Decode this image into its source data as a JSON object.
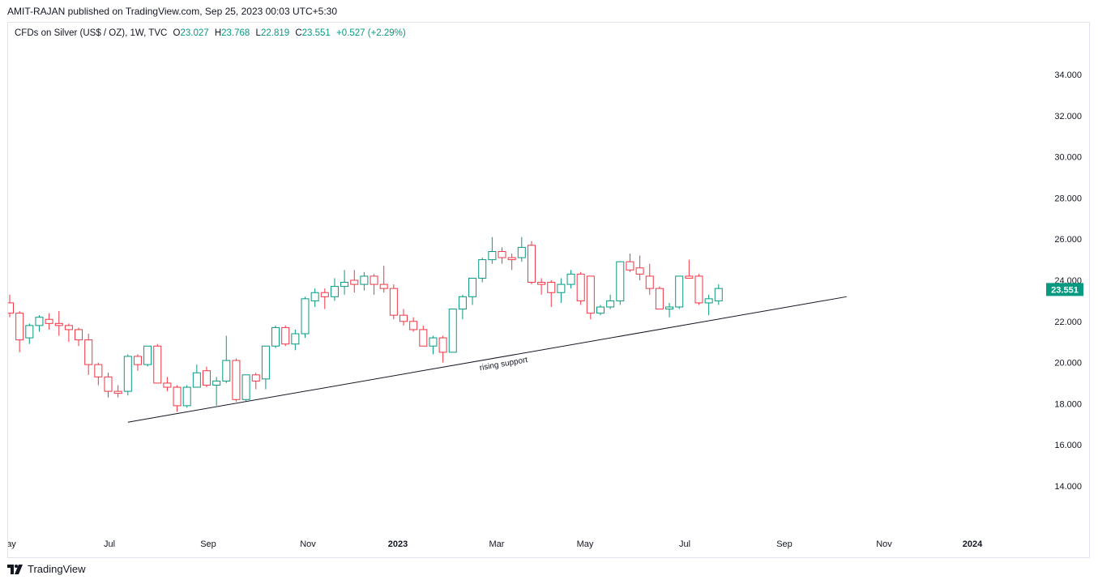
{
  "publisher_line": "AMIT-RAJAN published on TradingView.com, Sep 25, 2023 00:03 UTC+5:30",
  "legend": {
    "symbol": "CFDs on Silver (US$ / OZ), 1W, TVC",
    "open_label": "O",
    "open": "23.027",
    "high_label": "H",
    "high": "23.768",
    "low_label": "L",
    "low": "22.819",
    "close_label": "C",
    "close": "23.551",
    "change": "+0.527 (+2.29%)"
  },
  "footer": {
    "brand": "TradingView",
    "logo_icon": "tradingview-logo-icon"
  },
  "colors": {
    "up": "#089981",
    "down": "#f23645",
    "line": "#131722",
    "price_tag": "#089981"
  },
  "chart_data": {
    "type": "candlestick",
    "y_range": [
      12.5,
      35.5
    ],
    "y_ticks": [
      "34.000",
      "32.000",
      "30.000",
      "28.000",
      "26.000",
      "24.000",
      "22.000",
      "20.000",
      "18.000",
      "16.000",
      "14.000"
    ],
    "x_ticks": [
      {
        "label": "ay",
        "bold": false
      },
      {
        "label": "Jul",
        "bold": false
      },
      {
        "label": "Sep",
        "bold": false
      },
      {
        "label": "Nov",
        "bold": false
      },
      {
        "label": "2023",
        "bold": true
      },
      {
        "label": "Mar",
        "bold": false
      },
      {
        "label": "May",
        "bold": false
      },
      {
        "label": "Jul",
        "bold": false
      },
      {
        "label": "Sep",
        "bold": false
      },
      {
        "label": "Nov",
        "bold": false
      },
      {
        "label": "2024",
        "bold": true
      }
    ],
    "last_price": "23.551",
    "candles": [
      {
        "o": 22.9,
        "h": 23.3,
        "l": 22.2,
        "c": 22.4
      },
      {
        "o": 22.4,
        "h": 22.5,
        "l": 20.5,
        "c": 21.1
      },
      {
        "o": 21.2,
        "h": 21.9,
        "l": 20.9,
        "c": 21.8
      },
      {
        "o": 21.8,
        "h": 22.3,
        "l": 21.5,
        "c": 22.2
      },
      {
        "o": 22.1,
        "h": 22.4,
        "l": 21.6,
        "c": 21.9
      },
      {
        "o": 21.9,
        "h": 22.5,
        "l": 21.3,
        "c": 21.8
      },
      {
        "o": 21.8,
        "h": 21.9,
        "l": 21.0,
        "c": 21.6
      },
      {
        "o": 21.6,
        "h": 21.7,
        "l": 20.8,
        "c": 21.1
      },
      {
        "o": 21.1,
        "h": 21.4,
        "l": 19.4,
        "c": 19.9
      },
      {
        "o": 19.9,
        "h": 20.0,
        "l": 18.9,
        "c": 19.3
      },
      {
        "o": 19.3,
        "h": 19.5,
        "l": 18.3,
        "c": 18.6
      },
      {
        "o": 18.6,
        "h": 18.9,
        "l": 18.3,
        "c": 18.5
      },
      {
        "o": 18.6,
        "h": 20.4,
        "l": 18.4,
        "c": 20.3
      },
      {
        "o": 20.3,
        "h": 20.4,
        "l": 19.6,
        "c": 19.9
      },
      {
        "o": 19.9,
        "h": 20.8,
        "l": 19.8,
        "c": 20.8
      },
      {
        "o": 20.8,
        "h": 20.9,
        "l": 19.0,
        "c": 19.0
      },
      {
        "o": 19.0,
        "h": 19.3,
        "l": 18.6,
        "c": 18.8
      },
      {
        "o": 18.8,
        "h": 18.9,
        "l": 17.6,
        "c": 17.9
      },
      {
        "o": 17.9,
        "h": 18.9,
        "l": 17.8,
        "c": 18.8
      },
      {
        "o": 18.8,
        "h": 19.9,
        "l": 18.8,
        "c": 19.5
      },
      {
        "o": 19.6,
        "h": 19.8,
        "l": 18.8,
        "c": 18.9
      },
      {
        "o": 18.9,
        "h": 19.3,
        "l": 17.9,
        "c": 19.1
      },
      {
        "o": 19.1,
        "h": 21.3,
        "l": 19.0,
        "c": 20.1
      },
      {
        "o": 20.1,
        "h": 20.2,
        "l": 18.1,
        "c": 18.2
      },
      {
        "o": 18.2,
        "h": 19.4,
        "l": 18.1,
        "c": 19.4
      },
      {
        "o": 19.4,
        "h": 19.5,
        "l": 18.7,
        "c": 19.1
      },
      {
        "o": 19.2,
        "h": 20.8,
        "l": 18.7,
        "c": 20.8
      },
      {
        "o": 20.8,
        "h": 21.8,
        "l": 20.7,
        "c": 21.7
      },
      {
        "o": 21.7,
        "h": 21.8,
        "l": 20.8,
        "c": 20.9
      },
      {
        "o": 20.9,
        "h": 21.6,
        "l": 20.6,
        "c": 21.4
      },
      {
        "o": 21.4,
        "h": 23.2,
        "l": 21.2,
        "c": 23.1
      },
      {
        "o": 23.0,
        "h": 23.6,
        "l": 22.7,
        "c": 23.4
      },
      {
        "o": 23.4,
        "h": 23.6,
        "l": 22.6,
        "c": 23.2
      },
      {
        "o": 23.2,
        "h": 24.1,
        "l": 23.0,
        "c": 23.7
      },
      {
        "o": 23.7,
        "h": 24.5,
        "l": 23.3,
        "c": 23.9
      },
      {
        "o": 24.0,
        "h": 24.5,
        "l": 23.4,
        "c": 23.8
      },
      {
        "o": 23.8,
        "h": 24.4,
        "l": 23.5,
        "c": 24.2
      },
      {
        "o": 24.2,
        "h": 24.3,
        "l": 23.3,
        "c": 23.8
      },
      {
        "o": 23.8,
        "h": 24.7,
        "l": 23.4,
        "c": 23.6
      },
      {
        "o": 23.6,
        "h": 23.8,
        "l": 22.1,
        "c": 22.3
      },
      {
        "o": 22.3,
        "h": 22.6,
        "l": 21.8,
        "c": 22.0
      },
      {
        "o": 22.0,
        "h": 22.2,
        "l": 21.5,
        "c": 21.6
      },
      {
        "o": 21.6,
        "h": 21.8,
        "l": 20.8,
        "c": 20.8
      },
      {
        "o": 20.8,
        "h": 21.3,
        "l": 20.4,
        "c": 21.2
      },
      {
        "o": 21.2,
        "h": 21.3,
        "l": 20.0,
        "c": 20.5
      },
      {
        "o": 20.5,
        "h": 22.6,
        "l": 20.5,
        "c": 22.6
      },
      {
        "o": 22.6,
        "h": 23.3,
        "l": 22.1,
        "c": 23.2
      },
      {
        "o": 23.2,
        "h": 24.1,
        "l": 22.8,
        "c": 24.1
      },
      {
        "o": 24.1,
        "h": 25.1,
        "l": 23.9,
        "c": 25.0
      },
      {
        "o": 25.0,
        "h": 26.1,
        "l": 24.8,
        "c": 25.4
      },
      {
        "o": 25.4,
        "h": 25.6,
        "l": 24.8,
        "c": 25.1
      },
      {
        "o": 25.1,
        "h": 25.3,
        "l": 24.5,
        "c": 25.0
      },
      {
        "o": 25.1,
        "h": 26.1,
        "l": 24.9,
        "c": 25.6
      },
      {
        "o": 25.7,
        "h": 25.9,
        "l": 23.8,
        "c": 23.9
      },
      {
        "o": 23.9,
        "h": 24.1,
        "l": 23.3,
        "c": 23.8
      },
      {
        "o": 23.9,
        "h": 24.0,
        "l": 22.7,
        "c": 23.4
      },
      {
        "o": 23.4,
        "h": 24.1,
        "l": 22.9,
        "c": 23.8
      },
      {
        "o": 23.8,
        "h": 24.5,
        "l": 23.6,
        "c": 24.3
      },
      {
        "o": 24.3,
        "h": 24.4,
        "l": 22.8,
        "c": 23.0
      },
      {
        "o": 24.2,
        "h": 24.2,
        "l": 22.1,
        "c": 22.4
      },
      {
        "o": 22.4,
        "h": 22.8,
        "l": 22.3,
        "c": 22.7
      },
      {
        "o": 22.7,
        "h": 23.3,
        "l": 22.6,
        "c": 23.0
      },
      {
        "o": 23.0,
        "h": 24.9,
        "l": 22.8,
        "c": 24.9
      },
      {
        "o": 24.9,
        "h": 25.3,
        "l": 24.4,
        "c": 24.5
      },
      {
        "o": 24.6,
        "h": 25.2,
        "l": 24.0,
        "c": 24.3
      },
      {
        "o": 24.2,
        "h": 24.8,
        "l": 23.3,
        "c": 23.6
      },
      {
        "o": 23.6,
        "h": 23.7,
        "l": 22.6,
        "c": 22.6
      },
      {
        "o": 22.6,
        "h": 22.9,
        "l": 22.2,
        "c": 22.7
      },
      {
        "o": 22.7,
        "h": 24.2,
        "l": 22.6,
        "c": 24.2
      },
      {
        "o": 24.2,
        "h": 25.0,
        "l": 24.1,
        "c": 24.1
      },
      {
        "o": 24.2,
        "h": 24.3,
        "l": 22.8,
        "c": 22.9
      },
      {
        "o": 22.9,
        "h": 23.3,
        "l": 22.3,
        "c": 23.1
      },
      {
        "o": 23.0,
        "h": 23.8,
        "l": 22.8,
        "c": 23.6
      }
    ],
    "support_line": {
      "label": "rising support",
      "start": {
        "bar": 12,
        "price": 17.1
      },
      "end": {
        "bar": 85,
        "price": 23.2
      }
    }
  }
}
